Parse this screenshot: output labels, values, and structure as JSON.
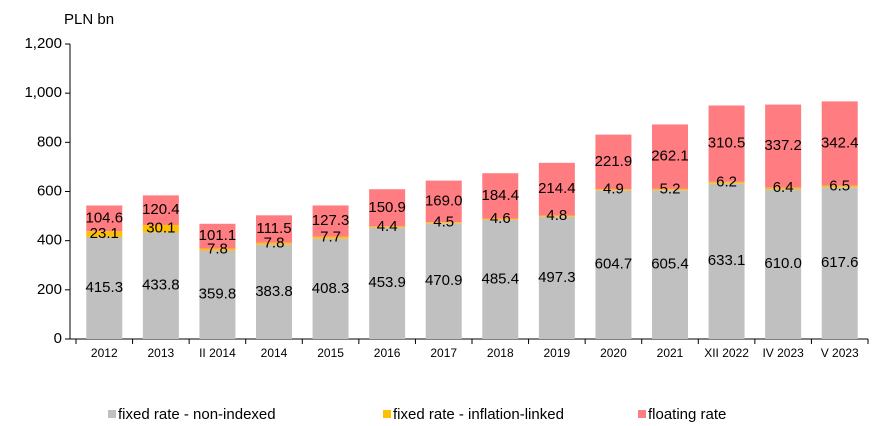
{
  "chart_data": {
    "type": "stacked_bar",
    "y_label": "PLN bn",
    "categories": [
      "2012",
      "2013",
      "II 2014",
      "2014",
      "2015",
      "2016",
      "2017",
      "2018",
      "2019",
      "2020",
      "2021",
      "XII 2022",
      "IV 2023",
      "V 2023"
    ],
    "series": [
      {
        "name": "fixed rate - non-indexed",
        "color": "#c0c0c0",
        "values": [
          415.3,
          433.8,
          359.8,
          383.8,
          408.3,
          453.9,
          470.9,
          485.4,
          497.3,
          604.7,
          605.4,
          633.1,
          610.0,
          617.6
        ],
        "value_labels": [
          "415.3",
          "433.8",
          "359.8",
          "383.8",
          "408.3",
          "453.9",
          "470.9",
          "485.4",
          "497.3",
          "604.7",
          "605.4",
          "633.1",
          "610.0",
          "617.6"
        ]
      },
      {
        "name": "fixed rate - inflation-linked",
        "color": "#ffc000",
        "values": [
          23.1,
          30.1,
          7.8,
          7.8,
          7.7,
          4.4,
          4.5,
          4.6,
          4.8,
          4.9,
          5.2,
          6.2,
          6.4,
          6.5
        ],
        "value_labels": [
          "23.1",
          "30.1",
          "7.8",
          "7.8",
          "7.7",
          "4.4",
          "4.5",
          "4.6",
          "4.8",
          "4.9",
          "5.2",
          "6.2",
          "6.4",
          "6.5"
        ]
      },
      {
        "name": "floating rate",
        "color": "#ff7c80",
        "values": [
          104.6,
          120.4,
          101.1,
          111.5,
          127.3,
          150.9,
          169.0,
          184.4,
          214.4,
          221.9,
          262.1,
          310.5,
          337.2,
          342.4
        ],
        "value_labels": [
          "104.6",
          "120.4",
          "101.1",
          "111.5",
          "127.3",
          "150.9",
          "169.0",
          "184.4",
          "214.4",
          "221.9",
          "262.1",
          "310.5",
          "337.2",
          "342.4"
        ]
      }
    ],
    "ylim": [
      0,
      1200
    ],
    "yticks": [
      0,
      200,
      400,
      600,
      800,
      {
        "value": 1000,
        "label": "1,000"
      },
      {
        "value": 1200,
        "label": "1,200"
      }
    ],
    "legend": "bottom"
  }
}
